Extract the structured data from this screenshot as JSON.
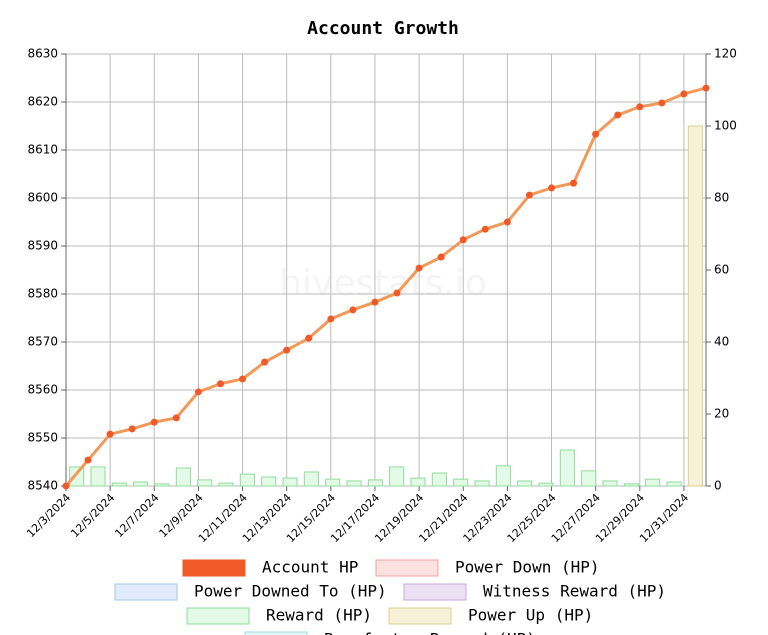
{
  "chart_data": {
    "type": "combo",
    "title": "Account Growth",
    "watermark": "hivestats.io",
    "categories": [
      "12/3/2024",
      null,
      "12/5/2024",
      null,
      "12/7/2024",
      null,
      "12/9/2024",
      null,
      "12/11/2024",
      null,
      "12/13/2024",
      null,
      "12/15/2024",
      null,
      "12/17/2024",
      null,
      "12/19/2024",
      null,
      "12/21/2024",
      null,
      "12/23/2024",
      null,
      "12/25/2024",
      null,
      "12/27/2024",
      null,
      "12/29/2024",
      null,
      "12/31/2024",
      null
    ],
    "ylim": [
      8540,
      8630
    ],
    "yticks": [
      8540,
      8550,
      8560,
      8570,
      8580,
      8590,
      8600,
      8610,
      8620,
      8630
    ],
    "y2lim": [
      0,
      120
    ],
    "y2ticks": [
      0,
      20,
      40,
      60,
      80,
      100,
      120
    ],
    "grid": true,
    "series": [
      {
        "name": "Account HP",
        "type": "line",
        "color": "#f05a28",
        "line_color": "#f2995a",
        "values": [
          8540.0,
          8545.4,
          8550.8,
          8551.9,
          8553.3,
          8554.2,
          8559.6,
          8561.3,
          8562.3,
          8565.8,
          8568.3,
          8570.8,
          8574.8,
          8576.7,
          8578.3,
          8580.2,
          8585.4,
          8587.7,
          8591.3,
          8593.5,
          8595.0,
          8600.6,
          8602.1,
          8603.1,
          8613.3,
          8617.3,
          8619.0,
          8619.8,
          8621.7,
          8622.9
        ]
      },
      {
        "name": "Power Down (HP)",
        "type": "bar",
        "axis": "y2",
        "color": "#fde0e0",
        "stroke": "#f4a0a0",
        "values": [
          0,
          0,
          0,
          0,
          0,
          0,
          0,
          0,
          0,
          0,
          0,
          0,
          0,
          0,
          0,
          0,
          0,
          0,
          0,
          0,
          0,
          0,
          0,
          0,
          0,
          0,
          0,
          0,
          0,
          0
        ]
      },
      {
        "name": "Power Downed To (HP)",
        "type": "bar",
        "axis": "y2",
        "color": "#e0ecfb",
        "stroke": "#a9c6ee",
        "values": [
          0,
          0,
          0,
          0,
          0,
          0,
          0,
          0,
          0,
          0,
          0,
          0,
          0,
          0,
          0,
          0,
          0,
          0,
          0,
          0,
          0,
          0,
          0,
          0,
          0,
          0,
          0,
          0,
          0,
          0
        ]
      },
      {
        "name": "Witness Reward (HP)",
        "type": "bar",
        "axis": "y2",
        "color": "#ebe0f3",
        "stroke": "#c5a9dc",
        "values": [
          0,
          0,
          0,
          0,
          0,
          0,
          0,
          0,
          0,
          0,
          0,
          0,
          0,
          0,
          0,
          0,
          0,
          0,
          0,
          0,
          0,
          0,
          0,
          0,
          0,
          0,
          0,
          0,
          0,
          0
        ]
      },
      {
        "name": "Reward (HP)",
        "type": "bar",
        "axis": "y2",
        "color": "#e3fbe6",
        "stroke": "#8fdc9c",
        "values": [
          5.3,
          5.3,
          0.8,
          1.1,
          0.6,
          5.0,
          1.7,
          0.8,
          3.3,
          2.5,
          2.2,
          3.9,
          1.9,
          1.4,
          1.7,
          5.3,
          2.2,
          3.6,
          1.9,
          1.4,
          5.6,
          1.4,
          0.8,
          10.0,
          4.2,
          1.4,
          0.6,
          1.9,
          1.1,
          0.3
        ]
      },
      {
        "name": "Power Up (HP)",
        "type": "bar",
        "axis": "y2",
        "color": "#f7f1d8",
        "stroke": "#dccf95",
        "values": [
          0,
          0,
          0,
          0,
          0,
          0,
          0,
          0,
          0,
          0,
          0,
          0,
          0,
          0,
          0,
          0,
          0,
          0,
          0,
          0,
          0,
          0,
          0,
          0,
          0,
          0,
          0,
          0,
          0,
          100
        ]
      },
      {
        "name": "Benefactor Reward (HP)",
        "type": "bar",
        "axis": "y2",
        "color": "#e0f7f7",
        "stroke": "#9edcdc",
        "values": [
          0,
          0,
          0,
          0,
          0,
          0,
          0,
          0,
          0,
          0,
          0,
          0,
          0,
          0,
          0,
          0,
          0,
          0,
          0,
          0,
          0,
          0,
          0,
          0,
          0,
          0,
          0,
          0,
          0,
          0
        ]
      }
    ]
  }
}
